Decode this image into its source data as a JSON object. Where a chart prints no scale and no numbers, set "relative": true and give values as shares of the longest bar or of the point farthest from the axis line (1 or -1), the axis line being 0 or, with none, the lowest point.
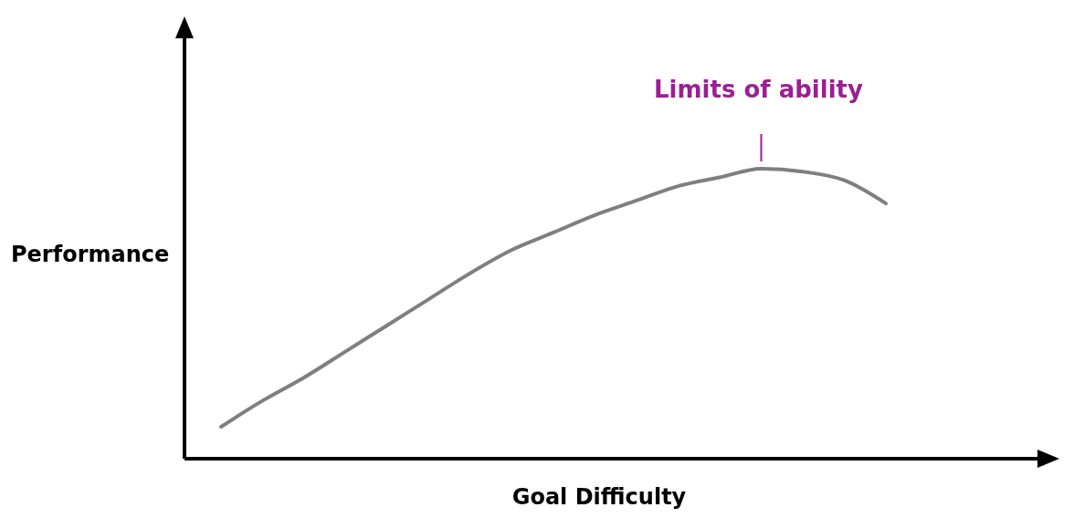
{
  "chart_data": {
    "type": "line",
    "relative": true,
    "xlabel": "Goal Difficulty",
    "ylabel": "Performance",
    "categories": [
      null,
      null,
      null,
      null,
      null,
      null,
      null,
      null,
      null,
      null,
      null,
      null,
      null,
      null,
      null,
      null,
      null
    ],
    "series": [
      {
        "color": "#7f7f7f",
        "values": [
          0.11,
          0.2,
          0.28,
          0.37,
          0.46,
          0.55,
          0.64,
          0.72,
          0.78,
          0.84,
          0.89,
          0.94,
          0.97,
          1.0,
          0.99,
          0.96,
          0.88
        ]
      }
    ],
    "annotations": [
      "Limits of ability"
    ],
    "marker": "none",
    "line_style": "solid"
  }
}
